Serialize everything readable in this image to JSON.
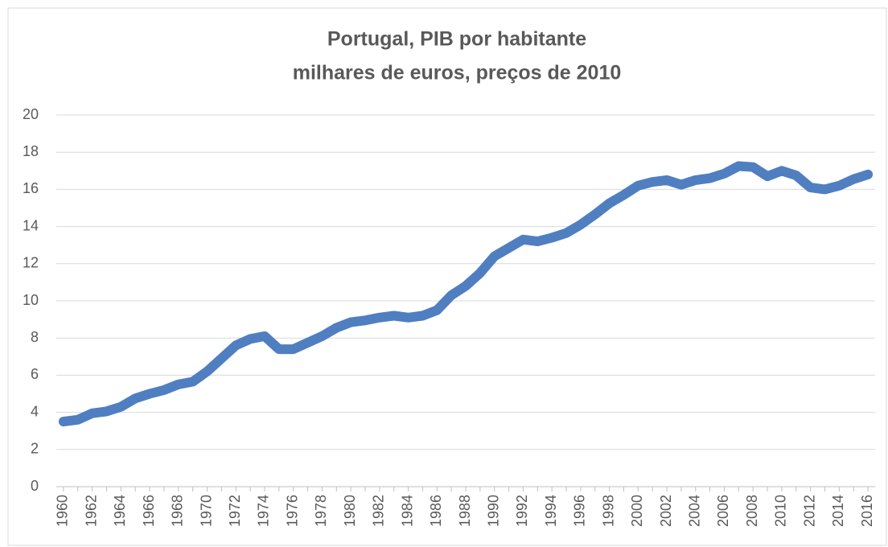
{
  "chart_data": {
    "type": "line",
    "title": "Portugal, PIB por habitante",
    "subtitle": "milhares de euros, preços de 2010",
    "categories": [
      "1960",
      null,
      "1962",
      null,
      "1964",
      null,
      "1966",
      null,
      "1968",
      null,
      "1970",
      null,
      "1972",
      null,
      "1974",
      null,
      "1976",
      null,
      "1978",
      null,
      "1980",
      null,
      "1982",
      null,
      "1984",
      null,
      "1986",
      null,
      "1988",
      null,
      "1990",
      null,
      "1992",
      null,
      "1994",
      null,
      "1996",
      null,
      "1998",
      null,
      "2000",
      null,
      "2002",
      null,
      "2004",
      null,
      "2006",
      null,
      "2008",
      null,
      "2010",
      null,
      "2012",
      null,
      "2014",
      null,
      "2016"
    ],
    "series": [
      {
        "color": "#4f7fc0",
        "values": [
          3.5,
          3.6,
          3.95,
          4.05,
          4.3,
          4.75,
          5.0,
          5.2,
          5.5,
          5.65,
          6.2,
          6.9,
          7.6,
          7.95,
          8.1,
          7.4,
          7.4,
          7.75,
          8.1,
          8.55,
          8.85,
          8.95,
          9.1,
          9.2,
          9.1,
          9.2,
          9.5,
          10.3,
          10.8,
          11.5,
          12.4,
          12.85,
          13.3,
          13.2,
          13.4,
          13.65,
          14.1,
          14.65,
          15.25,
          15.7,
          16.2,
          16.4,
          16.5,
          16.25,
          16.5,
          16.6,
          16.85,
          17.25,
          17.2,
          16.7,
          17.0,
          16.75,
          16.1,
          16.0,
          16.2,
          16.55,
          16.8
        ]
      }
    ],
    "ylim": [
      0,
      20
    ],
    "yticks": [
      0,
      2,
      4,
      6,
      8,
      10,
      12,
      14,
      16,
      18,
      20
    ],
    "grid": true
  }
}
